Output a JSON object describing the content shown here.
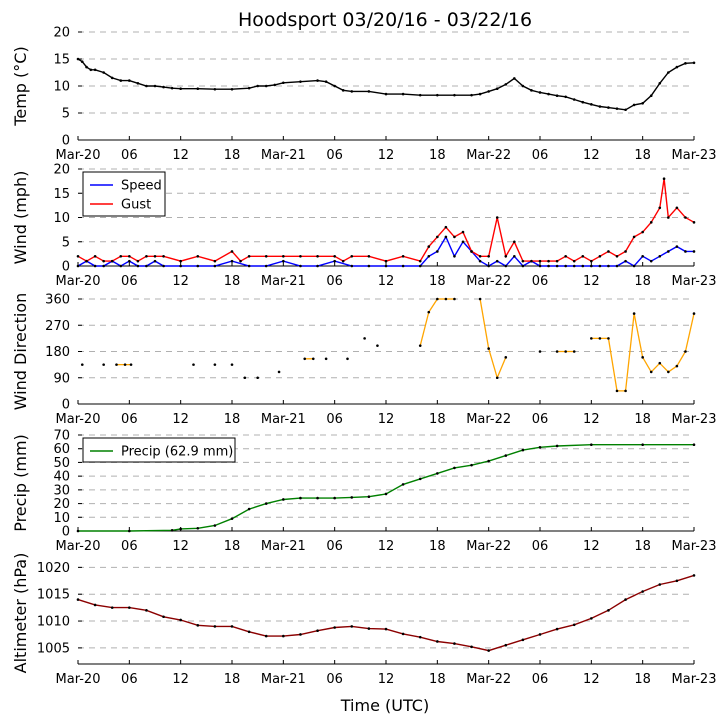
{
  "chart_data": {
    "type": "line",
    "title": "Hoodsport 03/20/16 - 03/22/16",
    "xlabel": "Time (UTC)",
    "x_ticks_hours": [
      0,
      6,
      12,
      18,
      24,
      30,
      36,
      42,
      48,
      54,
      60,
      66,
      72
    ],
    "x_tick_labels": [
      "Mar-20",
      "06",
      "12",
      "18",
      "Mar-21",
      "06",
      "12",
      "18",
      "Mar-22",
      "06",
      "12",
      "18",
      "Mar-23"
    ],
    "panels": [
      {
        "id": "temp",
        "ylabel": "Temp (°C)",
        "ylim": [
          0,
          20
        ],
        "yticks": [
          0,
          5,
          10,
          15,
          20
        ],
        "grid": true,
        "series": [
          {
            "name": "Temp",
            "color": "#000000",
            "x": [
              0,
              0.5,
              1,
              1.5,
              2,
              3,
              4,
              5,
              6,
              7,
              8,
              9,
              10,
              11,
              12,
              14,
              16,
              18,
              20,
              21,
              22,
              23,
              24,
              26,
              28,
              29,
              30,
              31,
              32,
              34,
              36,
              38,
              40,
              42,
              44,
              46,
              47,
              48,
              49,
              50,
              51,
              52,
              53,
              54,
              55,
              56,
              57,
              58,
              59,
              60,
              61,
              62,
              63,
              64,
              65,
              66,
              67,
              68,
              69,
              70,
              71,
              72
            ],
            "y": [
              15,
              14.5,
              13.5,
              13,
              13,
              12.5,
              11.5,
              11,
              11,
              10.5,
              10,
              10,
              9.8,
              9.6,
              9.5,
              9.5,
              9.4,
              9.4,
              9.6,
              10,
              10,
              10.2,
              10.6,
              10.8,
              11,
              10.8,
              10,
              9.2,
              9,
              9,
              8.5,
              8.5,
              8.3,
              8.3,
              8.3,
              8.3,
              8.5,
              9,
              9.5,
              10.3,
              11.4,
              10,
              9.2,
              8.8,
              8.5,
              8.2,
              8,
              7.5,
              7,
              6.6,
              6.2,
              6.0,
              5.8,
              5.6,
              6.5,
              6.8,
              8.2,
              10.5,
              12.5,
              13.5,
              14.2,
              14.3
            ]
          }
        ]
      },
      {
        "id": "wind",
        "ylabel": "Wind (mph)",
        "ylim": [
          0,
          20
        ],
        "yticks": [
          0,
          5,
          10,
          15,
          20
        ],
        "grid": true,
        "legend": "top-left",
        "series": [
          {
            "name": "Speed",
            "color": "#0000ff",
            "x": [
              0,
              1,
              2,
              3,
              4,
              5,
              6,
              7,
              8,
              9,
              10,
              12,
              14,
              16,
              18,
              20,
              22,
              24,
              26,
              28,
              30,
              32,
              34,
              36,
              38,
              40,
              41,
              42,
              43,
              44,
              45,
              46,
              47,
              48,
              49,
              50,
              51,
              52,
              53,
              54,
              55,
              56,
              57,
              58,
              59,
              60,
              61,
              62,
              63,
              64,
              65,
              66,
              67,
              68,
              69,
              70,
              71,
              72
            ],
            "y": [
              0,
              1,
              0,
              0,
              1,
              0,
              1,
              0,
              0,
              1,
              0,
              0,
              0,
              0,
              1,
              0,
              0,
              1,
              0,
              0,
              1,
              0,
              0,
              0,
              0,
              0,
              2,
              3,
              6,
              2,
              5,
              3,
              1,
              0,
              1,
              0,
              2,
              0,
              1,
              0,
              0,
              0,
              0,
              0,
              0,
              0,
              0,
              0,
              0,
              1,
              0,
              2,
              1,
              2,
              3,
              4,
              3,
              3
            ]
          },
          {
            "name": "Gust",
            "color": "#ff0000",
            "x": [
              0,
              1,
              2,
              3,
              4,
              5,
              6,
              7,
              8,
              9,
              10,
              12,
              14,
              16,
              18,
              19,
              20,
              22,
              24,
              26,
              28,
              30,
              31,
              32,
              34,
              36,
              38,
              40,
              41,
              42,
              43,
              44,
              45,
              46,
              47,
              48,
              49,
              50,
              51,
              52,
              53,
              54,
              55,
              56,
              57,
              58,
              59,
              60,
              61,
              62,
              63,
              64,
              65,
              66,
              67,
              68,
              68.5,
              69,
              70,
              71,
              72
            ],
            "y": [
              2,
              1,
              2,
              1,
              1,
              2,
              2,
              1,
              2,
              2,
              2,
              1,
              2,
              1,
              3,
              1,
              2,
              2,
              2,
              2,
              2,
              2,
              1,
              2,
              2,
              1,
              2,
              1,
              4,
              6,
              8,
              6,
              7,
              3,
              2,
              2,
              10,
              2,
              5,
              1,
              1,
              1,
              1,
              1,
              2,
              1,
              2,
              1,
              2,
              3,
              2,
              3,
              6,
              7,
              9,
              12,
              18,
              10,
              12,
              10,
              9
            ]
          }
        ]
      },
      {
        "id": "direction",
        "ylabel": "Wind Direction",
        "ylim": [
          0,
          360
        ],
        "yticks": [
          0,
          90,
          180,
          270,
          360
        ],
        "grid": true,
        "series": [
          {
            "name": "Direction",
            "color": "#ffa500",
            "x": [
              0.5,
              3,
              4.5,
              5.5,
              6.2,
              13.5,
              16,
              18,
              19.5,
              21,
              23.5,
              26.5,
              27.5,
              29,
              31.5,
              33.5,
              35,
              40,
              41,
              42,
              43,
              44,
              47,
              48,
              49,
              50,
              54,
              56,
              57,
              58,
              60,
              61,
              62,
              63,
              64,
              65,
              66,
              67,
              68,
              69,
              70,
              71,
              72
            ],
            "y": [
              135,
              135,
              135,
              135,
              135,
              135,
              135,
              135,
              90,
              90,
              110,
              155,
              155,
              155,
              155,
              225,
              200,
              200,
              315,
              360,
              360,
              360,
              360,
              190,
              90,
              160,
              180,
              180,
              180,
              180,
              225,
              225,
              225,
              45,
              45,
              310,
              160,
              110,
              140,
              110,
              130,
              180,
              310
            ]
          }
        ]
      },
      {
        "id": "precip",
        "ylabel": "Precip (mm)",
        "ylim": [
          0,
          70
        ],
        "yticks": [
          0,
          10,
          20,
          30,
          40,
          50,
          60,
          70
        ],
        "grid": true,
        "legend": "top-left",
        "series": [
          {
            "name": "Precip (62.9 mm)",
            "color": "#008000",
            "x": [
              0,
              6,
              11,
              12,
              14,
              16,
              18,
              20,
              22,
              24,
              26,
              28,
              30,
              32,
              34,
              36,
              38,
              40,
              42,
              44,
              46,
              48,
              50,
              52,
              54,
              56,
              60,
              66,
              72
            ],
            "y": [
              0,
              0,
              0.5,
              1.5,
              2,
              4,
              9,
              16,
              20,
              23,
              24,
              24,
              24,
              24.5,
              25,
              27,
              34,
              38,
              42,
              46,
              48,
              51,
              55,
              59,
              61,
              62,
              62.9,
              62.9,
              62.9
            ]
          }
        ]
      },
      {
        "id": "altimeter",
        "ylabel": "Altimeter (hPa)",
        "ylim": [
          1002,
          1021
        ],
        "yticks": [
          1005,
          1010,
          1015,
          1020
        ],
        "grid": true,
        "series": [
          {
            "name": "Altimeter",
            "color": "#8b0000",
            "x": [
              0,
              2,
              4,
              6,
              8,
              10,
              12,
              14,
              16,
              18,
              20,
              22,
              24,
              26,
              28,
              30,
              32,
              34,
              36,
              38,
              40,
              42,
              44,
              46,
              48,
              50,
              52,
              54,
              56,
              58,
              60,
              62,
              64,
              66,
              68,
              70,
              72
            ],
            "y": [
              1014,
              1013,
              1012.5,
              1012.5,
              1012,
              1010.8,
              1010.2,
              1009.2,
              1009,
              1009,
              1008,
              1007.2,
              1007.2,
              1007.5,
              1008.2,
              1008.8,
              1009,
              1008.6,
              1008.5,
              1007.6,
              1007,
              1006.2,
              1005.8,
              1005.2,
              1004.5,
              1005.5,
              1006.5,
              1007.5,
              1008.5,
              1009.3,
              1010.5,
              1012,
              1014,
              1015.5,
              1016.8,
              1017.5,
              1018.5
            ]
          }
        ]
      }
    ]
  }
}
